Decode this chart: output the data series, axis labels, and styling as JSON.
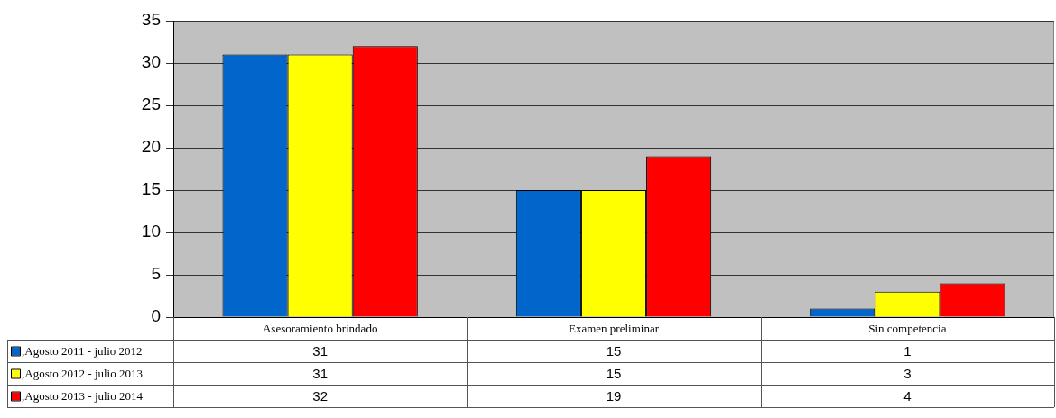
{
  "chart_data": {
    "type": "bar",
    "categories": [
      "Asesoramiento brindado",
      "Examen preliminar",
      "Sin competencia"
    ],
    "series": [
      {
        "name": ",Agosto 2011 - julio 2012",
        "color": "#0066cc",
        "values": [
          31,
          15,
          1
        ]
      },
      {
        "name": ",Agosto 2012 - julio 2013",
        "color": "#ffff00",
        "values": [
          31,
          15,
          3
        ]
      },
      {
        "name": ",Agosto 2013 - julio 2014",
        "color": "#ff0000",
        "values": [
          32,
          19,
          4
        ]
      }
    ],
    "ylim": [
      0,
      35
    ],
    "yticks": [
      0,
      5,
      10,
      15,
      20,
      25,
      30,
      35
    ],
    "grid": "y",
    "data_labels": true,
    "legend": "bottom left"
  }
}
